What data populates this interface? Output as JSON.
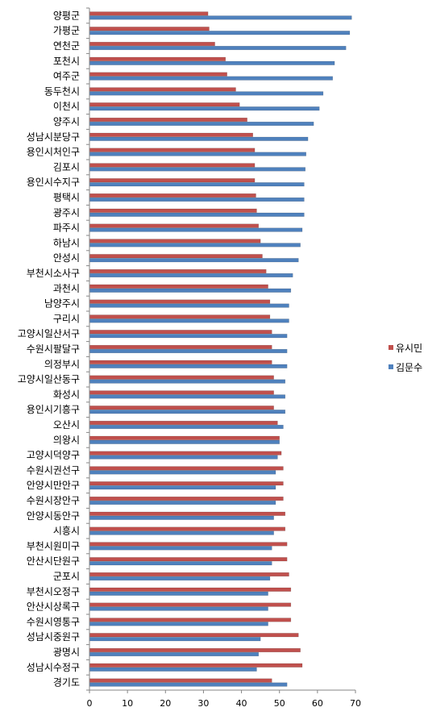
{
  "chart_data": {
    "type": "bar",
    "orientation": "horizontal",
    "categories": [
      "양평군",
      "가평군",
      "연천군",
      "포천시",
      "여주군",
      "동두천시",
      "이천시",
      "양주시",
      "성남시분당구",
      "용인시처인구",
      "김포시",
      "용인시수지구",
      "평택시",
      "광주시",
      "파주시",
      "하남시",
      "안성시",
      "부천시소사구",
      "과천시",
      "남양주시",
      "구리시",
      "고양시일산서구",
      "수원시팔달구",
      "의정부시",
      "고양시일산동구",
      "화성시",
      "용인시기흥구",
      "오산시",
      "의왕시",
      "고양시덕양구",
      "수원시권선구",
      "안양시만안구",
      "수원시장안구",
      "안양시동안구",
      "시흥시",
      "부천시원미구",
      "안산시단원구",
      "군포시",
      "부천시오정구",
      "안산시상록구",
      "수원시영통구",
      "성남시중원구",
      "광명시",
      "성남시수정구",
      "경기도"
    ],
    "series": [
      {
        "name": "유시민",
        "color": "#c0504d",
        "values": [
          31.2,
          31.5,
          33.0,
          35.8,
          36.2,
          38.5,
          39.5,
          41.5,
          43.0,
          43.5,
          43.5,
          43.5,
          43.8,
          44.0,
          44.5,
          45.0,
          45.5,
          46.5,
          47.0,
          47.5,
          47.5,
          48.0,
          48.0,
          48.0,
          48.5,
          48.5,
          48.5,
          49.5,
          50.0,
          50.5,
          51.0,
          51.0,
          51.0,
          51.5,
          51.5,
          52.0,
          52.0,
          52.5,
          53.0,
          53.0,
          53.0,
          55.0,
          55.5,
          56.0,
          48.0
        ]
      },
      {
        "name": "김문수",
        "color": "#4f81bd",
        "values": [
          69.0,
          68.5,
          67.5,
          64.5,
          64.0,
          61.5,
          60.5,
          59.0,
          57.5,
          57.0,
          56.8,
          56.5,
          56.5,
          56.5,
          56.0,
          55.5,
          55.0,
          53.5,
          53.0,
          52.5,
          52.5,
          52.0,
          52.0,
          52.0,
          51.5,
          51.5,
          51.5,
          51.0,
          50.0,
          49.5,
          49.0,
          49.0,
          49.0,
          48.5,
          48.5,
          48.0,
          48.0,
          47.5,
          47.0,
          47.0,
          47.0,
          45.0,
          44.5,
          44.0,
          52.0
        ]
      }
    ],
    "xlim": [
      0,
      70
    ],
    "xticks": [
      "0",
      "10",
      "20",
      "30",
      "40",
      "50",
      "60",
      "70"
    ],
    "legend_position": "right"
  }
}
